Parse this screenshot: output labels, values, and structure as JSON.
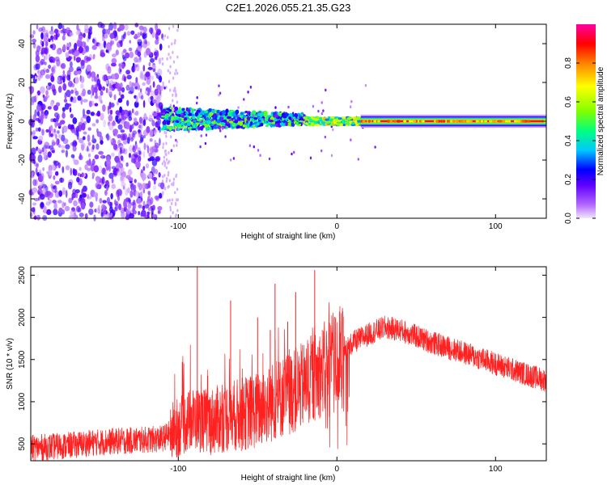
{
  "title": "C2E1.2026.055.21.35.G23",
  "chart_data": [
    {
      "type": "heatmap",
      "title": "C2E1.2026.055.21.35.G23",
      "xlabel": "Height of straight line (km)",
      "ylabel": "Frequency (Hz)",
      "xlim": [
        -193,
        132
      ],
      "ylim": [
        -50,
        50
      ],
      "xticks": [
        -100,
        0,
        100
      ],
      "yticks": [
        -40,
        -20,
        0,
        20,
        40
      ],
      "colorbar": {
        "label": "Normalized spectral amplitude",
        "range": [
          0,
          1
        ],
        "ticks": [
          0.0,
          0.2,
          0.4,
          0.6,
          0.8
        ],
        "tick_labels": [
          "0.0",
          "0.2",
          "0.4",
          "0.6",
          "0.8"
        ],
        "colormap": [
          "#e6ccff",
          "#8000ff",
          "#0000ff",
          "#00c8ff",
          "#00ff80",
          "#80ff00",
          "#ffff00",
          "#ff8000",
          "#ff0000",
          "#ff00a0"
        ]
      },
      "regions": [
        {
          "name": "noise",
          "x_range": [
            -193,
            -110
          ],
          "freq_range": [
            -50,
            50
          ],
          "amplitude": 0.1
        },
        {
          "name": "onset",
          "x_range": [
            -110,
            -20
          ],
          "freq_range": [
            -5,
            7
          ],
          "amplitude": 0.3
        },
        {
          "name": "transition",
          "x_range": [
            -20,
            15
          ],
          "freq_range": [
            -2,
            2
          ],
          "amplitude": 0.6
        },
        {
          "name": "signal",
          "x_range": [
            15,
            132
          ],
          "freq_range": [
            -1,
            1
          ],
          "amplitude": 0.95
        }
      ]
    },
    {
      "type": "line",
      "xlabel": "Height of straight line (km)",
      "ylabel": "SNR (10 * v/v)",
      "xlim": [
        -193,
        132
      ],
      "ylim": [
        300,
        2600
      ],
      "xticks": [
        -100,
        0,
        100
      ],
      "yticks": [
        500,
        1000,
        1500,
        2000,
        2500
      ],
      "color": "#ff2020",
      "series": [
        {
          "name": "SNR",
          "x": [
            -193,
            -170,
            -150,
            -130,
            -110,
            -100,
            -90,
            -80,
            -70,
            -60,
            -50,
            -40,
            -30,
            -20,
            -10,
            -5,
            0,
            5,
            10,
            20,
            30,
            40,
            60,
            80,
            100,
            120,
            132
          ],
          "values": [
            450,
            480,
            520,
            540,
            560,
            700,
            800,
            760,
            820,
            850,
            900,
            1000,
            1100,
            1200,
            1350,
            1500,
            1500,
            1600,
            1700,
            1800,
            1880,
            1850,
            1700,
            1580,
            1450,
            1320,
            1250
          ]
        }
      ],
      "spikes": [
        {
          "x": -88,
          "y": 2600
        },
        {
          "x": -67,
          "y": 2200
        },
        {
          "x": -50,
          "y": 2000
        },
        {
          "x": -39,
          "y": 2400
        },
        {
          "x": -26,
          "y": 2300
        },
        {
          "x": -14,
          "y": 2560
        },
        {
          "x": -42,
          "y": 1850
        },
        {
          "x": -31,
          "y": 1950
        }
      ]
    }
  ]
}
